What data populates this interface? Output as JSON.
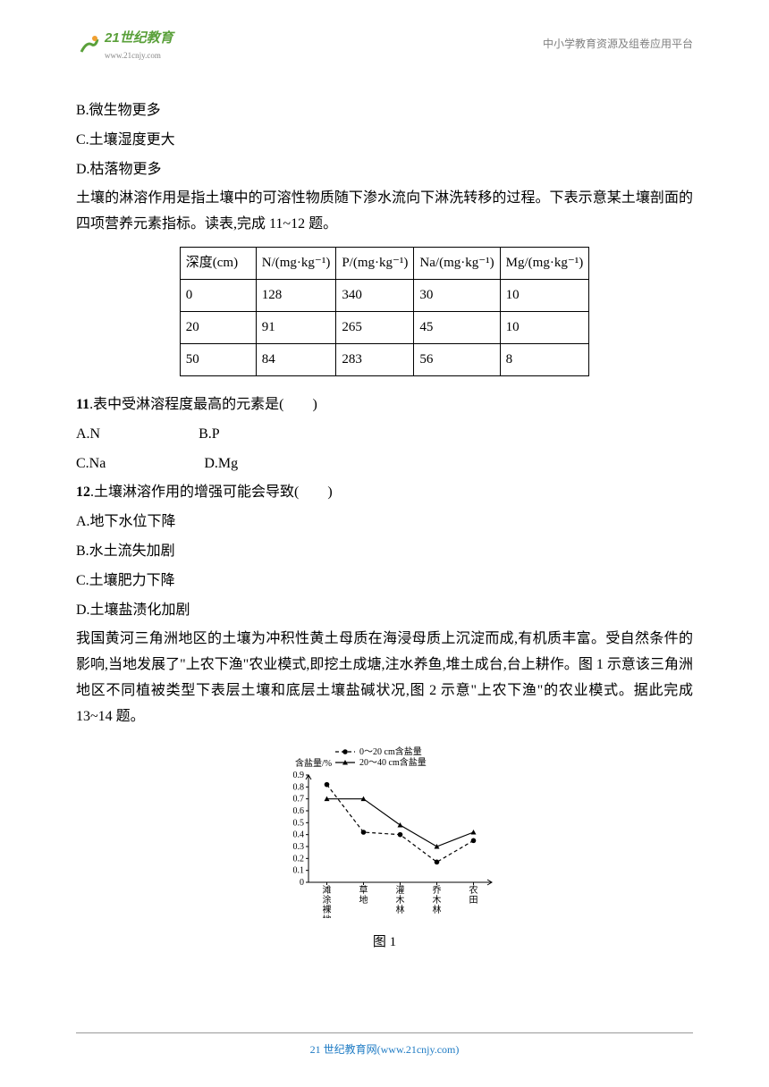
{
  "header": {
    "logo_cn": "21世纪教育",
    "logo_url": "www.21cnjy.com",
    "right_text": "中小学教育资源及组卷应用平台"
  },
  "options_top": {
    "b": "B.微生物更多",
    "c": "C.土壤湿度更大",
    "d": "D.枯落物更多"
  },
  "intro1": "土壤的淋溶作用是指土壤中的可溶性物质随下渗水流向下淋洗转移的过程。下表示意某土壤剖面的四项营养元素指标。读表,完成 11~12 题。",
  "table": {
    "headers": [
      "深度(cm)",
      "N/(mg·kg⁻¹)",
      "P/(mg·kg⁻¹)",
      "Na/(mg·kg⁻¹)",
      "Mg/(mg·kg⁻¹)"
    ],
    "rows": [
      [
        "0",
        "128",
        "340",
        "30",
        "10"
      ],
      [
        "20",
        "91",
        "265",
        "45",
        "10"
      ],
      [
        "50",
        "84",
        "283",
        "56",
        "8"
      ]
    ]
  },
  "q11": {
    "num": "11",
    "text": ".表中受淋溶程度最高的元素是(　　)",
    "opts": {
      "a": "A.N",
      "b": "B.P",
      "c": "C.Na",
      "d": "D.Mg"
    }
  },
  "q12": {
    "num": "12",
    "text": ".土壤淋溶作用的增强可能会导致(　　)",
    "a": "A.地下水位下降",
    "b": "B.水土流失加剧",
    "c": "C.土壤肥力下降",
    "d": "D.土壤盐渍化加剧"
  },
  "intro2": "我国黄河三角洲地区的土壤为冲积性黄土母质在海浸母质上沉淀而成,有机质丰富。受自然条件的影响,当地发展了\"上农下渔\"农业模式,即挖土成塘,注水养鱼,堆土成台,台上耕作。图 1 示意该三角洲地区不同植被类型下表层土壤和底层土壤盐碱状况,图 2 示意\"上农下渔\"的农业模式。据此完成 13~14 题。",
  "chart": {
    "caption": "图 1",
    "ylabel": "含盐量/%",
    "legend": {
      "s1": "0～20 cm含盐量",
      "s2": "20～40 cm含盐量"
    },
    "ylim": [
      0,
      0.9
    ],
    "ytick_step": 0.1,
    "yticks": [
      "0",
      "0.1",
      "0.2",
      "0.3",
      "0.4",
      "0.5",
      "0.6",
      "0.7",
      "0.8",
      "0.9"
    ],
    "categories": [
      "滩涂裸地",
      "草地",
      "灌木林",
      "乔木林",
      "农田"
    ],
    "series1": [
      0.82,
      0.42,
      0.4,
      0.17,
      0.35
    ],
    "series2": [
      0.7,
      0.7,
      0.48,
      0.3,
      0.42
    ],
    "marker1": "circle",
    "marker2": "triangle",
    "line1_dash": "4,3",
    "line2_dash": "0",
    "color": "#000000",
    "background_color": "#ffffff",
    "font_size_axis": 10,
    "font_size_legend": 10
  },
  "footer": {
    "text": "21 世纪教育网(www.21cnjy.com)"
  }
}
